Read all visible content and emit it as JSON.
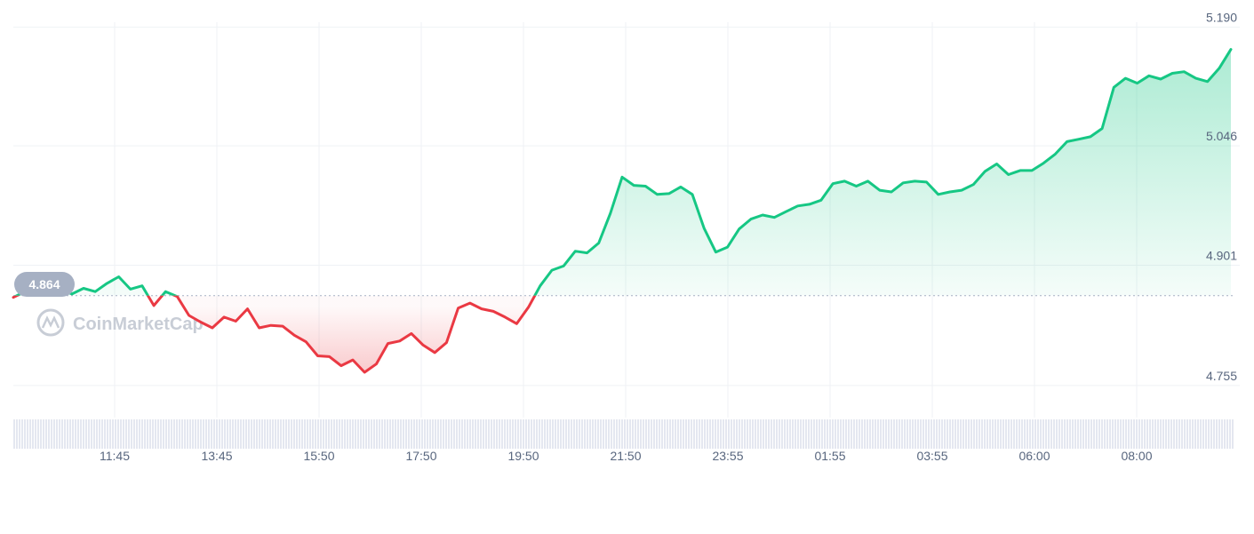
{
  "chart_data": {
    "type": "area",
    "x_tick_labels": [
      "11:45",
      "13:45",
      "15:50",
      "17:50",
      "19:50",
      "21:50",
      "23:55",
      "01:55",
      "03:55",
      "06:00",
      "08:00"
    ],
    "y_tick_labels": [
      "5.190",
      "5.046",
      "4.901",
      "4.755"
    ],
    "y_ticks": [
      5.19,
      5.046,
      4.901,
      4.755
    ],
    "ylim": [
      4.716,
      5.223
    ],
    "reference_value": 4.864,
    "reference_label": "4.864",
    "watermark": "CoinMarketCap",
    "grid": true,
    "colors": {
      "up": "#16c784",
      "down": "#ea3943",
      "grid": "#eff2f5",
      "text": "#58667e",
      "badge": "#a6b0c3",
      "volume": "#e4e7f0"
    },
    "x_start": "10:40",
    "x_step_minutes": 15,
    "values": [
      4.862,
      4.869,
      4.871,
      4.876,
      4.872,
      4.866,
      4.873,
      4.869,
      4.879,
      4.887,
      4.872,
      4.876,
      4.852,
      4.869,
      4.863,
      4.84,
      4.832,
      4.825,
      4.838,
      4.833,
      4.848,
      4.825,
      4.828,
      4.827,
      4.816,
      4.808,
      4.791,
      4.79,
      4.779,
      4.786,
      4.771,
      4.781,
      4.806,
      4.809,
      4.818,
      4.804,
      4.795,
      4.807,
      4.849,
      4.855,
      4.848,
      4.845,
      4.838,
      4.83,
      4.85,
      4.876,
      4.895,
      4.9,
      4.918,
      4.916,
      4.928,
      4.964,
      5.008,
      4.998,
      4.997,
      4.987,
      4.988,
      4.996,
      4.987,
      4.946,
      4.917,
      4.923,
      4.945,
      4.957,
      4.962,
      4.959,
      4.966,
      4.973,
      4.975,
      4.98,
      5.0,
      5.003,
      4.997,
      5.003,
      4.992,
      4.99,
      5.001,
      5.003,
      5.002,
      4.987,
      4.99,
      4.992,
      4.999,
      5.015,
      5.024,
      5.011,
      5.016,
      5.016,
      5.025,
      5.036,
      5.051,
      5.054,
      5.057,
      5.067,
      5.117,
      5.128,
      5.122,
      5.131,
      5.127,
      5.134,
      5.136,
      5.128,
      5.124,
      5.14,
      5.163
    ]
  },
  "volume": {
    "label": ""
  }
}
